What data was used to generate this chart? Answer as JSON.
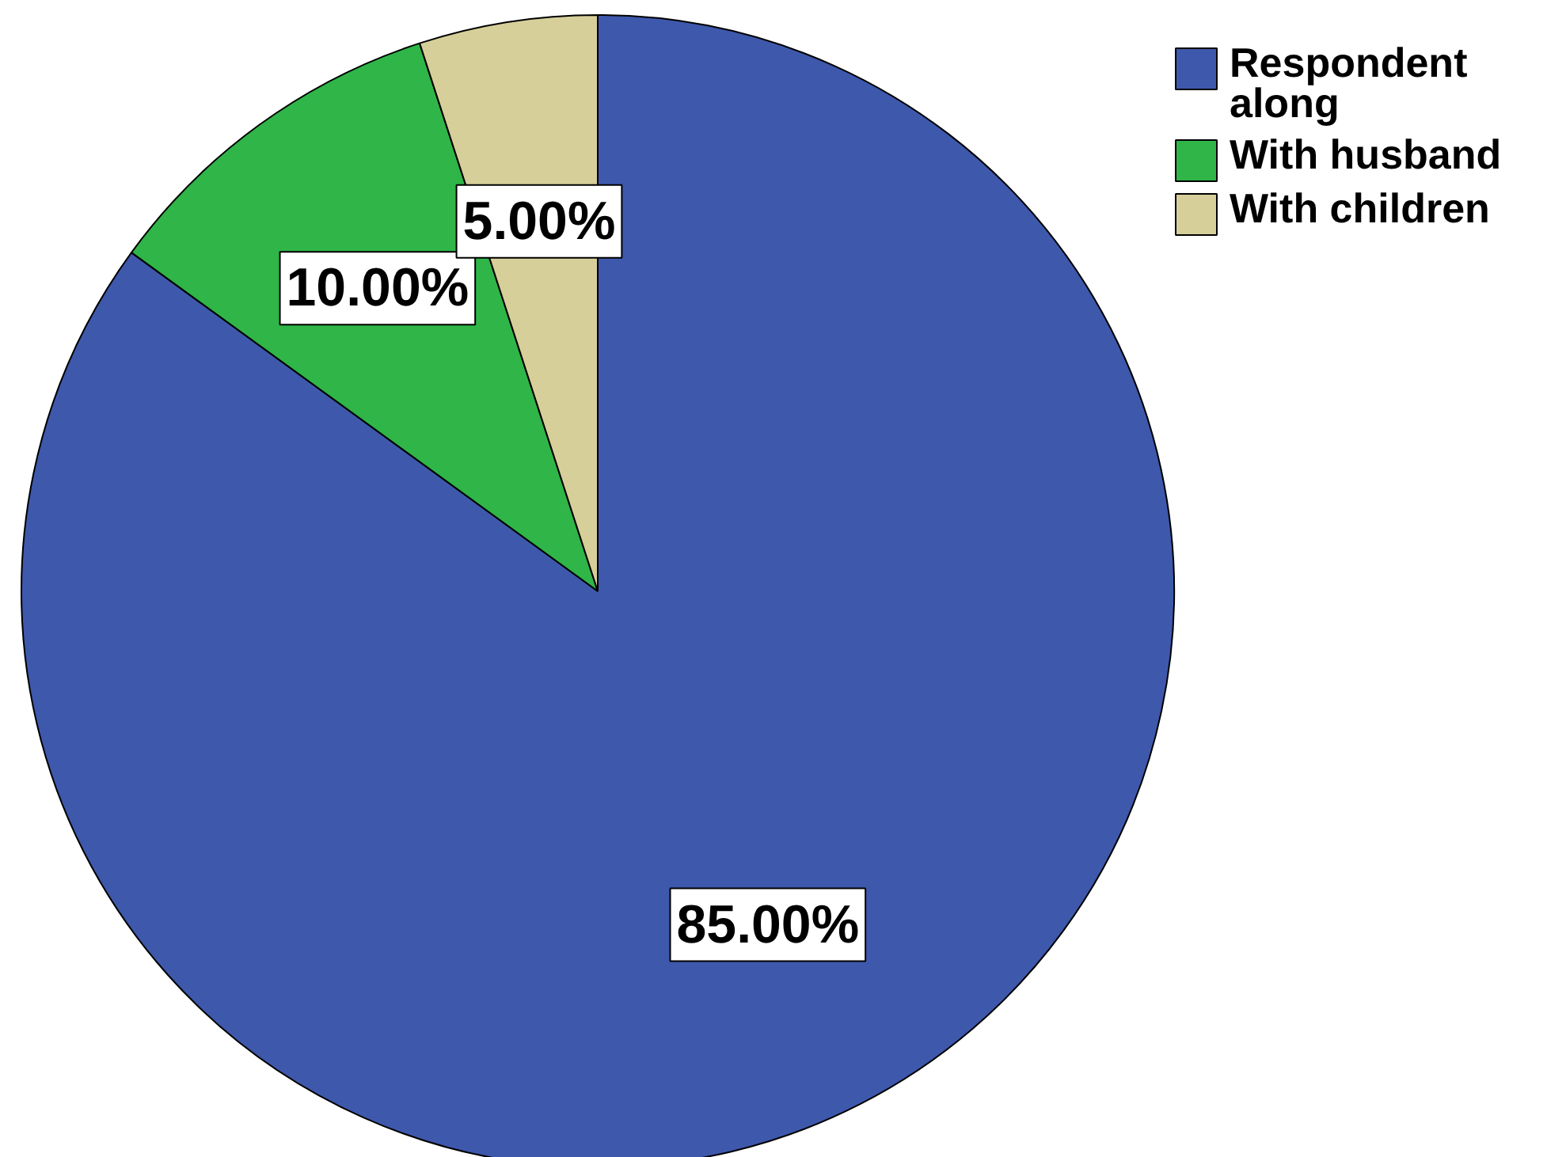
{
  "chart_data": {
    "type": "pie",
    "categories": [
      "Respondent along",
      "With husband",
      "With children"
    ],
    "values": [
      85,
      10,
      5
    ],
    "colors": [
      "#3e58ac",
      "#2fb548",
      "#d6cf99"
    ],
    "value_labels": [
      "85.00%",
      "10.00%",
      "5.00%"
    ],
    "legend": "top right"
  }
}
